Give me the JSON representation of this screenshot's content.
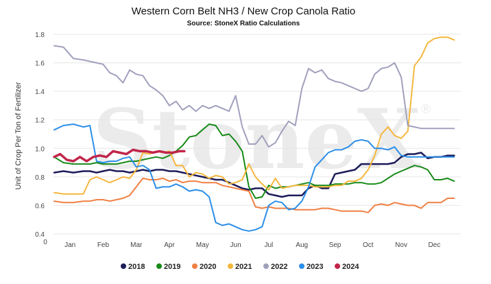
{
  "chart_data": {
    "type": "line",
    "title": "Western Corn Belt NH3 / New Crop Canola Ratio",
    "subtitle": "Source: StoneX Ratio Calculations",
    "ylabel": "Unit of Crop Per Ton of Fertilizer",
    "xlabel": "",
    "x_axis_zero_label": "0",
    "ylim": [
      0.4,
      1.8
    ],
    "yticks": [
      "0.4",
      "0.6",
      "0.8",
      "1.0",
      "1.2",
      "1.4",
      "1.6",
      "1.8"
    ],
    "categories": [
      "Jan",
      "Feb",
      "Mar",
      "Apr",
      "May",
      "Jun",
      "Jul",
      "Aug",
      "Sep",
      "Oct",
      "Nov",
      "Dec"
    ],
    "xlim": [
      0,
      12.3
    ],
    "grid": true,
    "legend_position": "bottom",
    "watermark": "StoneX",
    "watermark_mark": "®",
    "series": [
      {
        "name": "2018",
        "color": "#1c1c5a",
        "width": 2.5,
        "x": [
          0.02,
          0.3,
          0.6,
          0.9,
          1.1,
          1.3,
          1.5,
          1.7,
          1.9,
          2.1,
          2.3,
          2.5,
          2.7,
          2.9,
          3.1,
          3.3,
          3.5,
          3.7,
          3.9,
          4.1,
          4.3,
          4.5,
          4.7,
          4.9,
          5.1,
          5.3,
          5.5,
          5.7,
          5.9,
          6.1,
          6.3,
          6.5,
          6.7,
          6.9,
          7.1,
          7.3,
          7.5,
          7.7,
          7.9,
          8.1,
          8.3,
          8.5,
          8.7,
          8.9,
          9.1,
          9.3,
          9.5,
          9.7,
          9.9,
          10.1,
          10.3,
          10.5,
          10.7,
          10.9,
          11.1,
          11.3,
          11.5,
          11.7,
          11.9,
          12.1
        ],
        "y": [
          0.83,
          0.84,
          0.83,
          0.84,
          0.84,
          0.83,
          0.84,
          0.85,
          0.84,
          0.84,
          0.83,
          0.84,
          0.85,
          0.84,
          0.85,
          0.85,
          0.84,
          0.84,
          0.83,
          0.82,
          0.81,
          0.8,
          0.79,
          0.78,
          0.78,
          0.76,
          0.74,
          0.72,
          0.71,
          0.72,
          0.72,
          0.68,
          0.67,
          0.66,
          0.67,
          0.67,
          0.67,
          0.72,
          0.74,
          0.72,
          0.72,
          0.82,
          0.83,
          0.84,
          0.85,
          0.89,
          0.89,
          0.89,
          0.89,
          0.89,
          0.9,
          0.94,
          0.96,
          0.96,
          0.97,
          0.93,
          0.94,
          0.94,
          0.95,
          0.95
        ]
      },
      {
        "name": "2019",
        "color": "#178a17",
        "width": 2,
        "x": [
          0.02,
          0.3,
          0.6,
          0.9,
          1.1,
          1.3,
          1.5,
          1.7,
          1.9,
          2.1,
          2.3,
          2.5,
          2.7,
          2.9,
          3.1,
          3.3,
          3.5,
          3.7,
          3.9,
          4.1,
          4.3,
          4.5,
          4.7,
          4.9,
          5.1,
          5.3,
          5.5,
          5.7,
          5.9,
          6.1,
          6.3,
          6.5,
          6.7,
          6.9,
          7.1,
          7.3,
          7.5,
          7.7,
          7.9,
          8.1,
          8.3,
          8.5,
          8.7,
          8.9,
          9.1,
          9.3,
          9.5,
          9.7,
          9.9,
          10.1,
          10.3,
          10.5,
          10.7,
          10.9,
          11.1,
          11.3,
          11.5,
          11.7,
          11.9,
          12.1
        ],
        "y": [
          0.94,
          0.9,
          0.89,
          0.89,
          0.89,
          0.9,
          0.89,
          0.89,
          0.89,
          0.9,
          0.91,
          0.91,
          0.92,
          0.93,
          0.94,
          0.93,
          0.95,
          0.98,
          1.02,
          1.08,
          1.09,
          1.13,
          1.17,
          1.16,
          1.09,
          1.1,
          1.05,
          0.98,
          0.73,
          0.65,
          0.66,
          0.74,
          0.72,
          0.73,
          0.73,
          0.74,
          0.75,
          0.76,
          0.74,
          0.74,
          0.74,
          0.75,
          0.75,
          0.75,
          0.76,
          0.76,
          0.75,
          0.75,
          0.76,
          0.79,
          0.82,
          0.84,
          0.86,
          0.88,
          0.87,
          0.85,
          0.78,
          0.78,
          0.79,
          0.77
        ]
      },
      {
        "name": "2020",
        "color": "#f07f43",
        "width": 2,
        "x": [
          0.02,
          0.3,
          0.6,
          0.9,
          1.1,
          1.3,
          1.5,
          1.7,
          1.9,
          2.1,
          2.3,
          2.5,
          2.7,
          2.9,
          3.1,
          3.3,
          3.5,
          3.7,
          3.9,
          4.1,
          4.3,
          4.5,
          4.7,
          4.9,
          5.1,
          5.3,
          5.5,
          5.7,
          5.9,
          6.1,
          6.3,
          6.5,
          6.7,
          6.9,
          7.1,
          7.3,
          7.5,
          7.7,
          7.9,
          8.1,
          8.3,
          8.5,
          8.7,
          8.9,
          9.1,
          9.3,
          9.5,
          9.7,
          9.9,
          10.1,
          10.3,
          10.5,
          10.7,
          10.9,
          11.1,
          11.3,
          11.5,
          11.7,
          11.9,
          12.1
        ],
        "y": [
          0.63,
          0.62,
          0.62,
          0.63,
          0.63,
          0.64,
          0.64,
          0.63,
          0.64,
          0.65,
          0.67,
          0.73,
          0.79,
          0.78,
          0.78,
          0.79,
          0.77,
          0.78,
          0.76,
          0.77,
          0.77,
          0.76,
          0.76,
          0.76,
          0.74,
          0.73,
          0.72,
          0.71,
          0.7,
          0.59,
          0.58,
          0.59,
          0.58,
          0.58,
          0.58,
          0.57,
          0.57,
          0.57,
          0.57,
          0.58,
          0.58,
          0.57,
          0.56,
          0.56,
          0.56,
          0.56,
          0.55,
          0.6,
          0.61,
          0.6,
          0.62,
          0.61,
          0.6,
          0.6,
          0.58,
          0.62,
          0.62,
          0.62,
          0.65,
          0.65
        ]
      },
      {
        "name": "2021",
        "color": "#f4b73e",
        "width": 2,
        "x": [
          0.02,
          0.3,
          0.6,
          0.9,
          1.1,
          1.3,
          1.5,
          1.7,
          1.9,
          2.1,
          2.3,
          2.5,
          2.7,
          2.9,
          3.1,
          3.3,
          3.5,
          3.7,
          3.9,
          4.1,
          4.3,
          4.5,
          4.7,
          4.9,
          5.1,
          5.3,
          5.5,
          5.7,
          5.9,
          6.1,
          6.3,
          6.5,
          6.7,
          6.9,
          7.1,
          7.3,
          7.5,
          7.7,
          7.9,
          8.1,
          8.3,
          8.5,
          8.7,
          8.9,
          9.1,
          9.3,
          9.5,
          9.7,
          9.9,
          10.1,
          10.3,
          10.5,
          10.7,
          10.9,
          11.1,
          11.3,
          11.5,
          11.7,
          11.9,
          12.1
        ],
        "y": [
          0.69,
          0.68,
          0.68,
          0.68,
          0.78,
          0.8,
          0.78,
          0.76,
          0.78,
          0.8,
          0.79,
          0.85,
          0.97,
          0.96,
          0.98,
          0.97,
          0.98,
          0.88,
          0.88,
          0.8,
          0.83,
          0.82,
          0.79,
          0.81,
          0.8,
          0.75,
          0.76,
          0.78,
          0.89,
          0.8,
          0.75,
          0.71,
          0.79,
          0.72,
          0.73,
          0.74,
          0.74,
          0.74,
          0.73,
          0.73,
          0.73,
          0.74,
          0.74,
          0.77,
          0.77,
          0.79,
          0.85,
          0.95,
          1.1,
          1.15,
          1.09,
          1.07,
          1.12,
          1.58,
          1.64,
          1.74,
          1.77,
          1.78,
          1.78,
          1.76
        ]
      },
      {
        "name": "2022",
        "color": "#a0a0bd",
        "width": 2,
        "x": [
          0.02,
          0.3,
          0.6,
          0.9,
          1.1,
          1.3,
          1.5,
          1.7,
          1.9,
          2.1,
          2.3,
          2.5,
          2.7,
          2.9,
          3.1,
          3.3,
          3.5,
          3.7,
          3.9,
          4.1,
          4.3,
          4.5,
          4.7,
          4.9,
          5.1,
          5.3,
          5.5,
          5.7,
          5.9,
          6.1,
          6.3,
          6.5,
          6.7,
          6.9,
          7.1,
          7.3,
          7.5,
          7.7,
          7.9,
          8.1,
          8.3,
          8.5,
          8.7,
          8.9,
          9.1,
          9.3,
          9.5,
          9.7,
          9.9,
          10.1,
          10.3,
          10.5,
          10.7,
          10.9,
          11.1,
          11.3,
          11.5,
          11.7,
          11.9,
          12.1
        ],
        "y": [
          1.72,
          1.71,
          1.63,
          1.62,
          1.61,
          1.6,
          1.59,
          1.53,
          1.51,
          1.46,
          1.55,
          1.52,
          1.51,
          1.44,
          1.41,
          1.37,
          1.3,
          1.33,
          1.27,
          1.3,
          1.26,
          1.3,
          1.28,
          1.3,
          1.28,
          1.26,
          1.37,
          1.15,
          1.03,
          1.03,
          1.09,
          1.01,
          1.04,
          1.12,
          1.19,
          1.16,
          1.42,
          1.56,
          1.53,
          1.55,
          1.49,
          1.47,
          1.46,
          1.44,
          1.42,
          1.4,
          1.42,
          1.52,
          1.56,
          1.57,
          1.6,
          1.5,
          1.16,
          1.15,
          1.14,
          1.14,
          1.14,
          1.14,
          1.14,
          1.14
        ]
      },
      {
        "name": "2023",
        "color": "#2b8ee8",
        "width": 2,
        "x": [
          0.02,
          0.3,
          0.6,
          0.9,
          1.1,
          1.3,
          1.5,
          1.7,
          1.9,
          2.1,
          2.3,
          2.5,
          2.7,
          2.9,
          3.1,
          3.3,
          3.5,
          3.7,
          3.9,
          4.1,
          4.3,
          4.5,
          4.7,
          4.9,
          5.1,
          5.3,
          5.5,
          5.7,
          5.9,
          6.1,
          6.3,
          6.5,
          6.7,
          6.9,
          7.1,
          7.3,
          7.5,
          7.7,
          7.9,
          8.1,
          8.3,
          8.5,
          8.7,
          8.9,
          9.1,
          9.3,
          9.5,
          9.7,
          9.9,
          10.1,
          10.3,
          10.5,
          10.7,
          10.9,
          11.1,
          11.3,
          11.5,
          11.7,
          11.9,
          12.1
        ],
        "y": [
          1.13,
          1.16,
          1.17,
          1.15,
          1.16,
          0.91,
          0.9,
          0.91,
          0.91,
          0.93,
          0.94,
          0.87,
          0.88,
          0.85,
          0.72,
          0.73,
          0.73,
          0.75,
          0.73,
          0.7,
          0.71,
          0.7,
          0.66,
          0.48,
          0.46,
          0.47,
          0.45,
          0.43,
          0.42,
          0.43,
          0.45,
          0.6,
          0.63,
          0.62,
          0.57,
          0.58,
          0.63,
          0.73,
          0.87,
          0.92,
          0.97,
          0.99,
          0.99,
          1.01,
          1.05,
          1.06,
          1.05,
          1.0,
          1.0,
          0.99,
          1.01,
          0.95,
          0.94,
          0.94,
          0.94,
          0.94,
          0.94,
          0.94,
          0.94,
          0.94
        ]
      },
      {
        "name": "2024",
        "color": "#c0264a",
        "width": 3.5,
        "x": [
          0.02,
          0.2,
          0.4,
          0.6,
          0.8,
          1.0,
          1.2,
          1.4,
          1.6,
          1.8,
          2.0,
          2.2,
          2.4,
          2.6,
          2.8,
          3.0,
          3.2,
          3.4,
          3.6,
          3.8,
          3.95
        ],
        "y": [
          0.94,
          0.96,
          0.92,
          0.91,
          0.94,
          0.91,
          0.94,
          0.95,
          0.94,
          0.98,
          0.97,
          0.96,
          0.99,
          0.98,
          0.98,
          0.97,
          0.98,
          0.97,
          0.97,
          0.98,
          0.98
        ]
      }
    ]
  }
}
